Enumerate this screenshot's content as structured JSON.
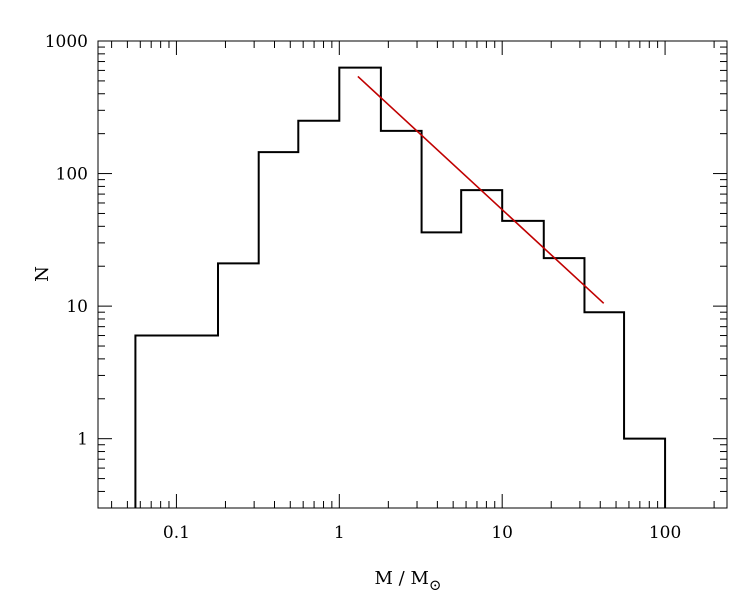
{
  "chart_data": {
    "type": "histogram",
    "title": "",
    "xlabel": "M / M",
    "xlabel_symbol": "⊙",
    "ylabel": "N",
    "xscale": "log",
    "yscale": "log",
    "xlim": [
      0.033,
      240
    ],
    "ylim": [
      0.3,
      1000
    ],
    "grid": false,
    "legend": "none",
    "x_ticks": [
      {
        "value": 0.1,
        "label": "0.1"
      },
      {
        "value": 1,
        "label": "1"
      },
      {
        "value": 10,
        "label": "10"
      },
      {
        "value": 100,
        "label": "100"
      }
    ],
    "y_ticks": [
      {
        "value": 1,
        "label": "1"
      },
      {
        "value": 10,
        "label": "10"
      },
      {
        "value": 100,
        "label": "100"
      },
      {
        "value": 1000,
        "label": "1000"
      }
    ],
    "bins": [
      {
        "x0": 0.056,
        "x1": 0.18,
        "count": 6
      },
      {
        "x0": 0.18,
        "x1": 0.32,
        "count": 21
      },
      {
        "x0": 0.32,
        "x1": 0.56,
        "count": 145
      },
      {
        "x0": 0.56,
        "x1": 1.0,
        "count": 250
      },
      {
        "x0": 1.0,
        "x1": 1.8,
        "count": 630
      },
      {
        "x0": 1.8,
        "x1": 3.2,
        "count": 210
      },
      {
        "x0": 3.2,
        "x1": 5.6,
        "count": 36
      },
      {
        "x0": 5.6,
        "x1": 10,
        "count": 75
      },
      {
        "x0": 10,
        "x1": 18,
        "count": 44
      },
      {
        "x0": 18,
        "x1": 32,
        "count": 23
      },
      {
        "x0": 32,
        "x1": 56,
        "count": 9
      },
      {
        "x0": 56,
        "x1": 100,
        "count": 1
      }
    ],
    "fit_line": {
      "color": "#c00000",
      "points": [
        [
          1.3,
          540
        ],
        [
          42,
          10.5
        ]
      ]
    },
    "histogram_color": "#000000"
  }
}
